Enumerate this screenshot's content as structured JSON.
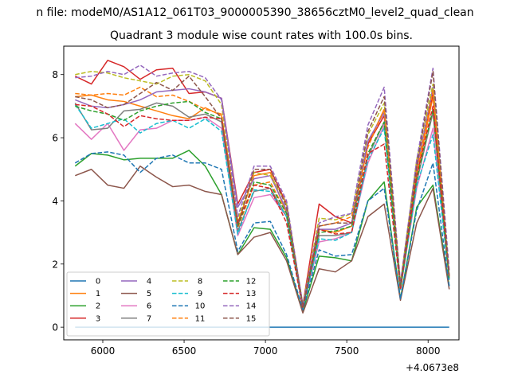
{
  "figure": {
    "suptitle": "n file: modeM0/AS1A12_061T03_9000005390_38656cztM0_level2_quad_clean",
    "title": "Quadrant 3 module wise count rates with 100.0s bins.",
    "offset_text": "+4.0673e8"
  },
  "chart_data": {
    "type": "line",
    "title": "Quadrant 3 module wise count rates with 100.0s bins.",
    "xlabel": "",
    "ylabel": "",
    "x_offset": 406730000,
    "xlim": [
      5760,
      8190
    ],
    "ylim": [
      -0.4,
      8.9
    ],
    "x_ticks": [
      6000,
      6500,
      7000,
      7500,
      8000
    ],
    "y_ticks": [
      0,
      2,
      4,
      6,
      8
    ],
    "grid": false,
    "legend": {
      "placement": "lower-left",
      "ncol": 4
    },
    "x": [
      5830,
      5930,
      6030,
      6130,
      6230,
      6330,
      6430,
      6530,
      6630,
      6730,
      6830,
      6930,
      7030,
      7130,
      7230,
      7330,
      7430,
      7530,
      7630,
      7730,
      7830,
      7930,
      8030,
      8130
    ],
    "series": [
      {
        "name": "0",
        "color": "#1f77b4",
        "dash": "solid",
        "values": [
          0,
          0,
          0,
          0,
          0,
          0,
          0,
          0,
          0,
          0,
          0,
          0,
          0,
          0,
          0,
          0,
          0,
          0,
          0,
          0,
          0,
          0,
          0,
          0
        ]
      },
      {
        "name": "1",
        "color": "#ff7f0e",
        "dash": "solid",
        "values": [
          7.3,
          7.35,
          7.2,
          7.15,
          7.0,
          6.85,
          6.7,
          6.6,
          6.95,
          6.7,
          3.3,
          4.8,
          4.9,
          3.6,
          0.6,
          3.1,
          3.0,
          3.2,
          5.8,
          6.9,
          1.2,
          4.8,
          7.3,
          1.5
        ]
      },
      {
        "name": "2",
        "color": "#2ca02c",
        "dash": "solid",
        "values": [
          5.1,
          5.5,
          5.45,
          5.3,
          5.35,
          5.35,
          5.35,
          5.6,
          5.1,
          4.2,
          2.3,
          3.15,
          3.1,
          2.2,
          0.5,
          2.25,
          2.2,
          2.1,
          4.0,
          4.6,
          0.9,
          3.8,
          4.5,
          1.3
        ]
      },
      {
        "name": "3",
        "color": "#d62728",
        "dash": "solid",
        "values": [
          7.95,
          7.7,
          8.45,
          8.25,
          7.85,
          8.15,
          8.2,
          7.4,
          7.45,
          7.25,
          3.9,
          4.9,
          5.0,
          3.9,
          0.7,
          3.9,
          3.5,
          3.3,
          5.8,
          6.7,
          1.35,
          5.1,
          7.4,
          1.6
        ]
      },
      {
        "name": "4",
        "color": "#9467bd",
        "dash": "solid",
        "values": [
          7.2,
          7.0,
          6.95,
          7.05,
          7.2,
          7.45,
          7.5,
          7.55,
          7.45,
          7.25,
          3.8,
          4.7,
          4.8,
          3.7,
          0.65,
          3.1,
          3.1,
          3.3,
          5.9,
          6.8,
          1.3,
          5.0,
          7.6,
          1.5
        ]
      },
      {
        "name": "5",
        "color": "#8c564b",
        "dash": "solid",
        "values": [
          4.8,
          5.0,
          4.5,
          4.4,
          5.1,
          4.75,
          4.45,
          4.5,
          4.3,
          4.2,
          2.3,
          2.85,
          3.0,
          2.1,
          0.45,
          1.85,
          1.75,
          2.1,
          3.5,
          3.9,
          0.85,
          3.3,
          4.4,
          1.2
        ]
      },
      {
        "name": "6",
        "color": "#e377c2",
        "dash": "solid",
        "values": [
          6.45,
          5.95,
          6.45,
          5.6,
          6.25,
          6.3,
          6.55,
          6.55,
          6.65,
          6.3,
          2.9,
          4.1,
          4.2,
          3.5,
          0.6,
          2.7,
          2.8,
          3.0,
          5.2,
          6.4,
          1.2,
          4.4,
          6.3,
          1.5
        ]
      },
      {
        "name": "7",
        "color": "#7f7f7f",
        "dash": "solid",
        "values": [
          7.1,
          6.25,
          6.3,
          6.85,
          6.9,
          7.1,
          7.0,
          6.65,
          6.75,
          6.5,
          3.05,
          4.3,
          4.4,
          3.5,
          0.6,
          2.9,
          2.9,
          3.0,
          5.4,
          6.5,
          1.2,
          4.6,
          6.8,
          1.5
        ]
      },
      {
        "name": "8",
        "color": "#bcbd22",
        "dash": "dashed",
        "values": [
          8.0,
          8.1,
          8.05,
          7.9,
          7.8,
          7.7,
          7.95,
          8.0,
          7.8,
          7.05,
          3.4,
          4.9,
          4.8,
          3.9,
          0.7,
          3.45,
          3.4,
          3.6,
          6.1,
          7.1,
          1.4,
          5.3,
          7.7,
          1.6
        ]
      },
      {
        "name": "9",
        "color": "#17becf",
        "dash": "dashed",
        "values": [
          7.05,
          6.3,
          6.45,
          6.6,
          6.15,
          6.45,
          6.55,
          6.3,
          6.6,
          6.2,
          2.95,
          4.35,
          4.3,
          3.5,
          0.6,
          2.8,
          2.75,
          3.0,
          5.3,
          6.3,
          1.2,
          4.5,
          6.1,
          1.5
        ]
      },
      {
        "name": "10",
        "color": "#1f77b4",
        "dash": "dashed",
        "values": [
          5.2,
          5.5,
          5.55,
          5.45,
          4.9,
          5.35,
          5.45,
          5.2,
          5.2,
          5.0,
          2.4,
          3.3,
          3.35,
          2.3,
          0.55,
          2.45,
          2.25,
          2.3,
          4.0,
          4.4,
          0.9,
          3.7,
          5.2,
          1.3
        ]
      },
      {
        "name": "11",
        "color": "#ff7f0e",
        "dash": "dashed",
        "values": [
          7.4,
          7.35,
          7.4,
          7.35,
          7.6,
          7.3,
          7.35,
          7.15,
          6.9,
          6.75,
          3.15,
          4.5,
          4.6,
          3.6,
          0.65,
          3.2,
          3.3,
          3.5,
          5.7,
          6.9,
          1.3,
          4.9,
          7.5,
          1.6
        ]
      },
      {
        "name": "12",
        "color": "#2ca02c",
        "dash": "dashed",
        "values": [
          7.0,
          6.85,
          6.75,
          6.55,
          6.85,
          7.0,
          7.1,
          7.15,
          6.8,
          6.6,
          3.2,
          4.6,
          4.5,
          3.6,
          0.65,
          3.0,
          3.05,
          3.2,
          5.5,
          6.5,
          1.25,
          4.7,
          6.9,
          1.5
        ]
      },
      {
        "name": "13",
        "color": "#d62728",
        "dash": "dashed",
        "values": [
          7.05,
          7.0,
          6.75,
          6.35,
          6.7,
          6.6,
          6.55,
          6.55,
          6.65,
          6.6,
          3.3,
          4.5,
          4.4,
          3.3,
          0.6,
          3.1,
          2.95,
          3.0,
          5.5,
          5.8,
          1.2,
          4.8,
          7.0,
          1.6
        ]
      },
      {
        "name": "14",
        "color": "#9467bd",
        "dash": "dashed",
        "values": [
          7.9,
          7.95,
          8.1,
          8.0,
          8.3,
          7.95,
          8.05,
          8.1,
          7.9,
          7.2,
          3.5,
          5.1,
          5.1,
          4.0,
          0.7,
          3.3,
          3.5,
          3.6,
          6.4,
          7.6,
          1.4,
          5.3,
          8.2,
          1.8
        ]
      },
      {
        "name": "15",
        "color": "#8c564b",
        "dash": "dashed",
        "values": [
          7.3,
          7.2,
          6.95,
          7.05,
          7.4,
          7.75,
          7.5,
          7.95,
          7.3,
          6.6,
          3.2,
          5.0,
          5.0,
          3.8,
          0.65,
          3.2,
          3.3,
          3.3,
          6.2,
          7.3,
          1.3,
          5.1,
          8.1,
          1.6
        ]
      }
    ]
  }
}
